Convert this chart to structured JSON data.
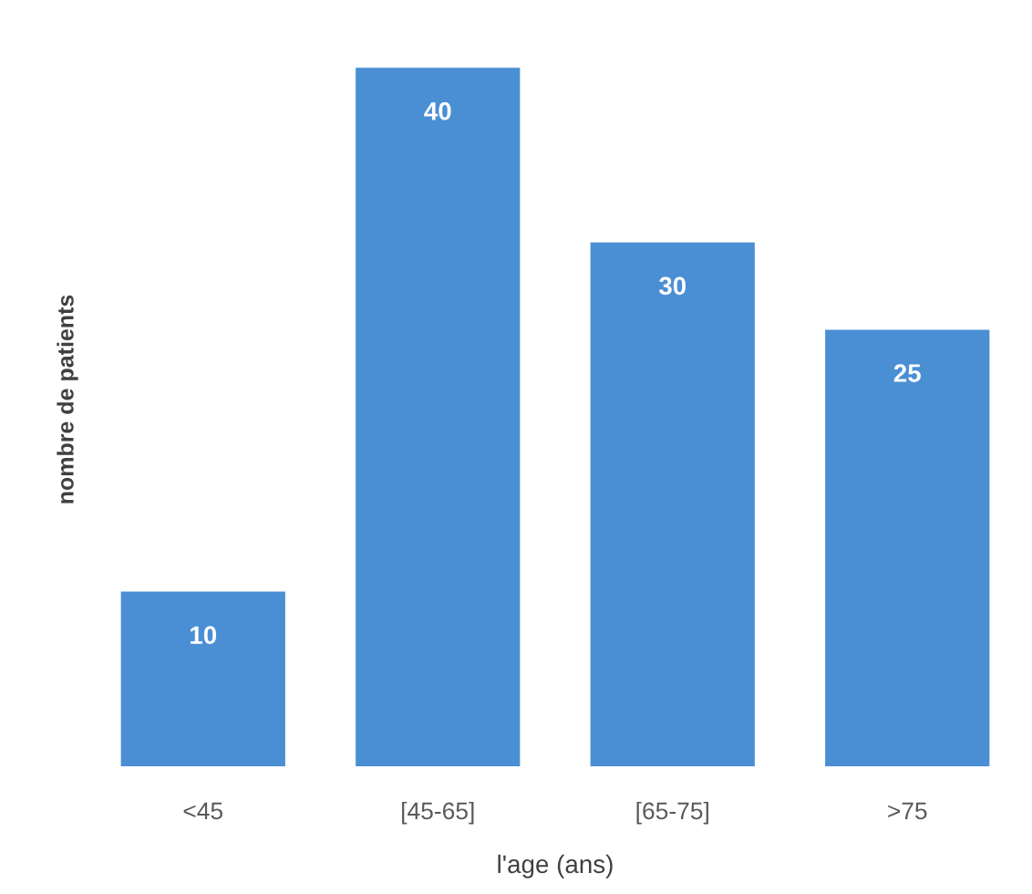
{
  "chart_data": {
    "type": "bar",
    "xlabel": "l'age (ans)",
    "ylabel": "nombre de patients",
    "categories": [
      "<45",
      "[45-65]",
      "[65-75]",
      ">75"
    ],
    "values": [
      10,
      40,
      30,
      25
    ],
    "color": "#4a8fd4",
    "data_labels": true,
    "tick_labels": "x"
  }
}
